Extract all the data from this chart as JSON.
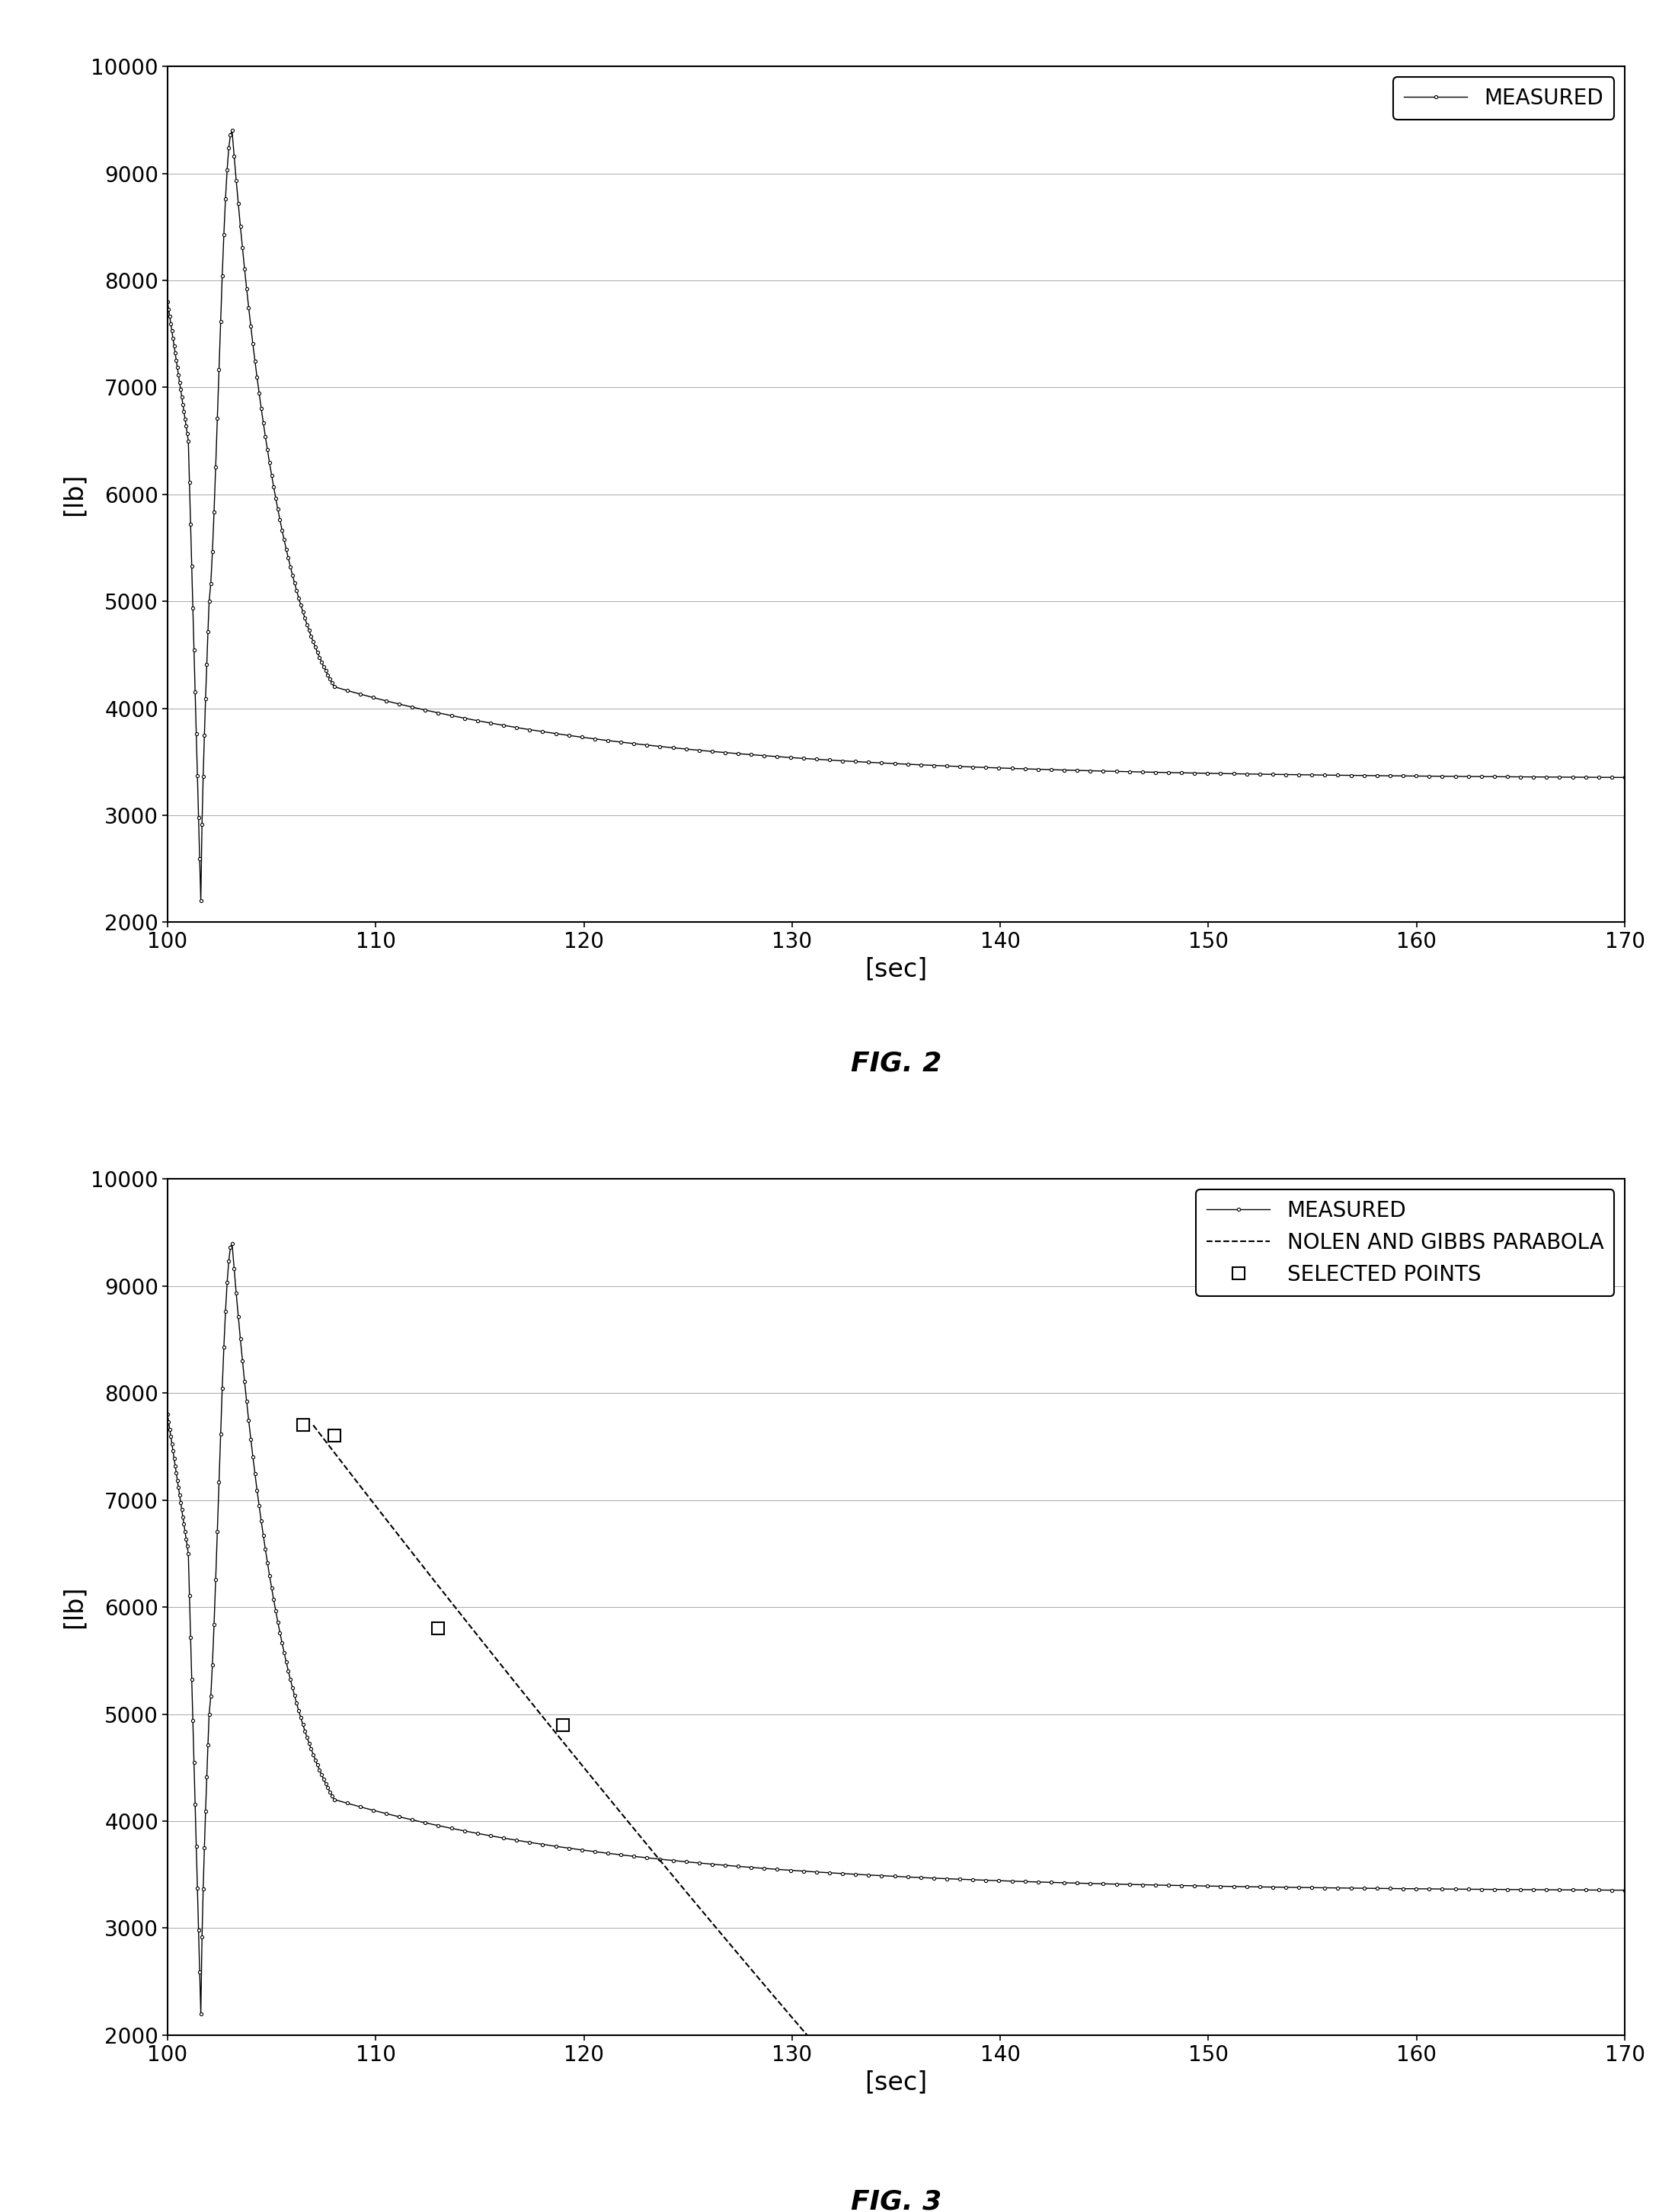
{
  "fig2": {
    "title": "FIG. 2",
    "xlabel": "[sec]",
    "ylabel": "[lb]",
    "xlim": [
      100,
      170
    ],
    "ylim": [
      2000,
      10000
    ],
    "xticks": [
      100,
      110,
      120,
      130,
      140,
      150,
      160,
      170
    ],
    "yticks": [
      2000,
      3000,
      4000,
      5000,
      6000,
      7000,
      8000,
      9000,
      10000
    ],
    "legend_label": "MEASURED"
  },
  "fig3": {
    "title": "FIG. 3",
    "xlabel": "[sec]",
    "ylabel": "[lb]",
    "xlim": [
      100,
      170
    ],
    "ylim": [
      2000,
      10000
    ],
    "xticks": [
      100,
      110,
      120,
      130,
      140,
      150,
      160,
      170
    ],
    "yticks": [
      2000,
      3000,
      4000,
      5000,
      6000,
      7000,
      8000,
      9000,
      10000
    ],
    "legend_labels": [
      "MEASURED",
      "NOLEN AND GIBBS PARABOLA",
      "SELECTED POINTS"
    ],
    "parabola_x": [
      108,
      112,
      116,
      120,
      124,
      128,
      131
    ],
    "parabola_y": [
      7700,
      6700,
      5600,
      4500,
      3500,
      2700,
      2000
    ],
    "selected_points_x": [
      105,
      108,
      113,
      119
    ],
    "selected_points_y": [
      7700,
      7700,
      5800,
      4900
    ]
  },
  "line_color": "#000000",
  "background_color": "#ffffff",
  "grid_color": "#999999"
}
